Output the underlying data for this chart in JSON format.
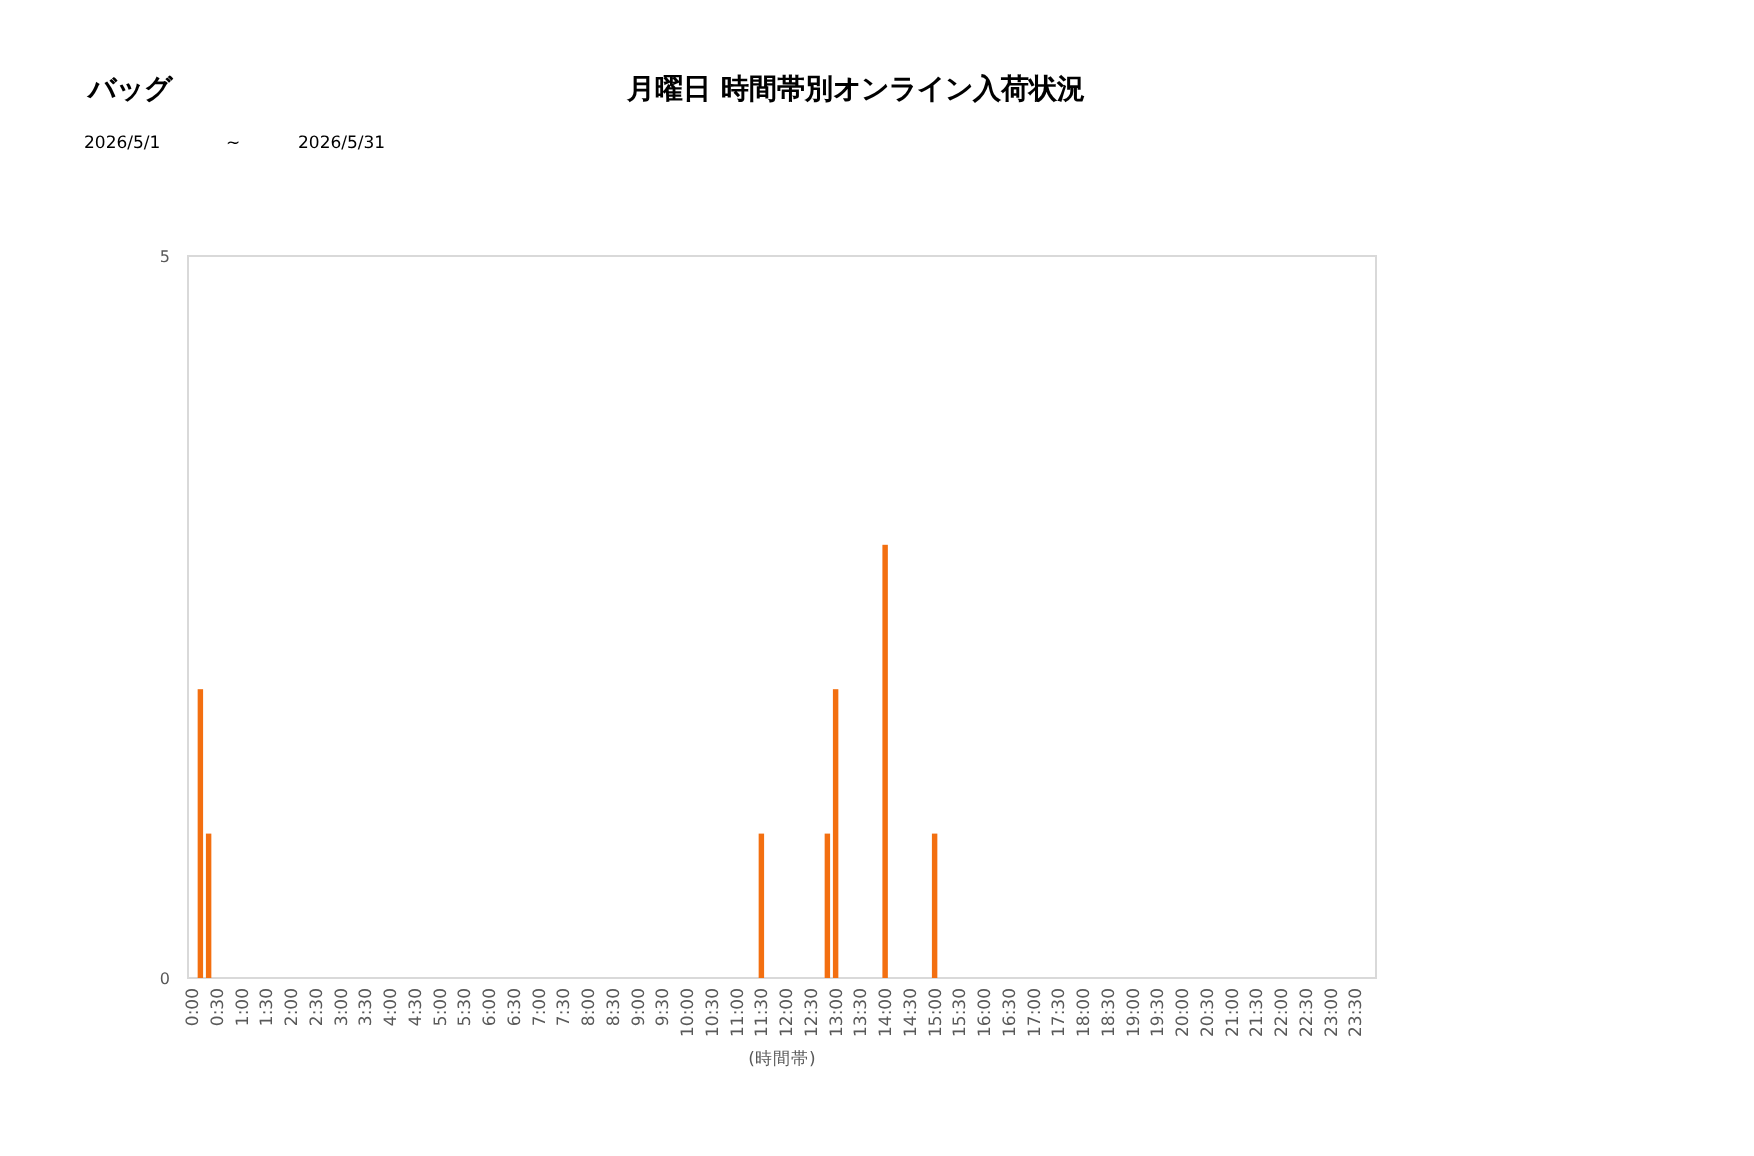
{
  "chart_data": {
    "type": "bar",
    "title": "月曜日 時間帯別オンライン入荷状況",
    "subtitle": "バッグ",
    "xlabel": "(時間帯)",
    "annotations": [
      "2026/5/1",
      "~",
      "2026/5/31"
    ],
    "categories": [
      "0:00",
      null,
      null,
      "0:30",
      null,
      null,
      "1:00",
      null,
      null,
      "1:30",
      null,
      null,
      "2:00",
      null,
      null,
      "2:30",
      null,
      null,
      "3:00",
      null,
      null,
      "3:30",
      null,
      null,
      "4:00",
      null,
      null,
      "4:30",
      null,
      null,
      "5:00",
      null,
      null,
      "5:30",
      null,
      null,
      "6:00",
      null,
      null,
      "6:30",
      null,
      null,
      "7:00",
      null,
      null,
      "7:30",
      null,
      null,
      "8:00",
      null,
      null,
      "8:30",
      null,
      null,
      "9:00",
      null,
      null,
      "9:30",
      null,
      null,
      "10:00",
      null,
      null,
      "10:30",
      null,
      null,
      "11:00",
      null,
      null,
      "11:30",
      null,
      null,
      "12:00",
      null,
      null,
      "12:30",
      null,
      null,
      "13:00",
      null,
      null,
      "13:30",
      null,
      null,
      "14:00",
      null,
      null,
      "14:30",
      null,
      null,
      "15:00",
      null,
      null,
      "15:30",
      null,
      null,
      "16:00",
      null,
      null,
      "16:30",
      null,
      null,
      "17:00",
      null,
      null,
      "17:30",
      null,
      null,
      "18:00",
      null,
      null,
      "18:30",
      null,
      null,
      "19:00",
      null,
      null,
      "19:30",
      null,
      null,
      "20:00",
      null,
      null,
      "20:30",
      null,
      null,
      "21:00",
      null,
      null,
      "21:30",
      null,
      null,
      "22:00",
      null,
      null,
      "22:30",
      null,
      null,
      "23:00",
      null,
      null,
      "23:30",
      null,
      null
    ],
    "values": [
      0,
      2,
      1,
      0,
      0,
      0,
      0,
      0,
      0,
      0,
      0,
      0,
      0,
      0,
      0,
      0,
      0,
      0,
      0,
      0,
      0,
      0,
      0,
      0,
      0,
      0,
      0,
      0,
      0,
      0,
      0,
      0,
      0,
      0,
      0,
      0,
      0,
      0,
      0,
      0,
      0,
      0,
      0,
      0,
      0,
      0,
      0,
      0,
      0,
      0,
      0,
      0,
      0,
      0,
      0,
      0,
      0,
      0,
      0,
      0,
      0,
      0,
      0,
      0,
      0,
      0,
      0,
      0,
      0,
      1,
      0,
      0,
      0,
      0,
      0,
      0,
      0,
      1,
      2,
      0,
      0,
      0,
      0,
      0,
      3,
      0,
      0,
      0,
      0,
      0,
      1,
      0,
      0,
      0,
      0,
      0,
      0,
      0,
      0,
      0,
      0,
      0,
      0,
      0,
      0,
      0,
      0,
      0,
      0,
      0,
      0,
      0,
      0,
      0,
      0,
      0,
      0,
      0,
      0,
      0,
      0,
      0,
      0,
      0,
      0,
      0,
      0,
      0,
      0,
      0,
      0,
      0,
      0,
      0,
      0,
      0,
      0,
      0,
      0,
      0,
      0,
      0,
      0,
      0
    ],
    "color": "#f36f10",
    "ylim": [
      0,
      5
    ],
    "yticks": [
      0,
      5
    ]
  }
}
